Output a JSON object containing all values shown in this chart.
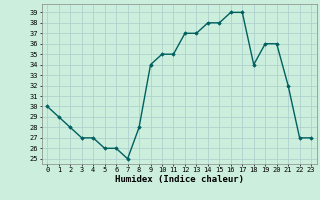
{
  "x": [
    0,
    1,
    2,
    3,
    4,
    5,
    6,
    7,
    8,
    9,
    10,
    11,
    12,
    13,
    14,
    15,
    16,
    17,
    18,
    19,
    20,
    21,
    22,
    23
  ],
  "y": [
    30,
    29,
    28,
    27,
    27,
    26,
    26,
    25,
    28,
    34,
    35,
    35,
    37,
    37,
    38,
    38,
    39,
    39,
    34,
    36,
    36,
    32,
    27,
    27
  ],
  "line_color": "#006060",
  "marker": "D",
  "marker_size": 1.8,
  "bg_color": "#cceedd",
  "grid_color": "#aacccc",
  "xlabel": "Humidex (Indice chaleur)",
  "xlim": [
    -0.5,
    23.5
  ],
  "ylim": [
    24.5,
    39.8
  ],
  "yticks": [
    25,
    26,
    27,
    28,
    29,
    30,
    31,
    32,
    33,
    34,
    35,
    36,
    37,
    38,
    39
  ],
  "xticks": [
    0,
    1,
    2,
    3,
    4,
    5,
    6,
    7,
    8,
    9,
    10,
    11,
    12,
    13,
    14,
    15,
    16,
    17,
    18,
    19,
    20,
    21,
    22,
    23
  ],
  "tick_fontsize": 5.0,
  "xlabel_fontsize": 6.5,
  "line_width": 1.0
}
